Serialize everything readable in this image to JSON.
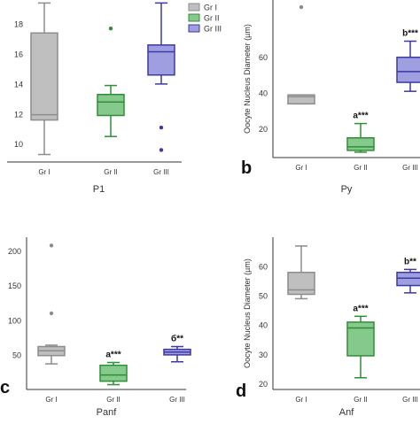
{
  "legend": {
    "items": [
      {
        "label": "Gr I",
        "color": "#bfbfbf",
        "stroke": "#8c8c8c"
      },
      {
        "label": "Gr II",
        "color": "#86c98c",
        "stroke": "#2f8f36"
      },
      {
        "label": "Gr III",
        "color": "#9e9ee0",
        "stroke": "#3a3aa0"
      }
    ]
  },
  "groups": [
    {
      "name": "Gr I",
      "fill": "#bfbfbf",
      "stroke": "#8c8c8c"
    },
    {
      "name": "Gr II",
      "fill": "#86c98c",
      "stroke": "#2f8f36"
    },
    {
      "name": "Gr III",
      "fill": "#9e9ee0",
      "stroke": "#3a3aa0"
    }
  ],
  "chart_data": [
    {
      "type": "box",
      "panel_letter": "",
      "xlabel": "P1",
      "ylabel": "",
      "ylim": [
        8.8,
        19.6
      ],
      "yticks": [
        10,
        12,
        14,
        16,
        18
      ],
      "categories": [
        "Gr I",
        "Gr II",
        "Gr III"
      ],
      "boxes": [
        {
          "whislo": 9.3,
          "q1": 11.6,
          "med": 11.95,
          "q3": 17.4,
          "whishi": 19.4,
          "outliers": [],
          "annotation": ""
        },
        {
          "whislo": 10.5,
          "q1": 11.9,
          "med": 12.8,
          "q3": 13.3,
          "whishi": 13.9,
          "outliers": [
            17.7
          ],
          "annotation": ""
        },
        {
          "whislo": 14.0,
          "q1": 14.6,
          "med": 16.15,
          "q3": 16.6,
          "whishi": 19.4,
          "outliers": [
            11.1,
            9.6
          ],
          "annotation": ""
        }
      ]
    },
    {
      "type": "box",
      "panel_letter": "b",
      "xlabel": "Py",
      "ylabel": "Oocyte Nucleus Diameter (µm)",
      "ylim": [
        4,
        92
      ],
      "yticks": [
        20,
        40,
        60
      ],
      "categories": [
        "Gr I",
        "Gr II",
        "Gr III"
      ],
      "boxes": [
        {
          "whislo": 34,
          "q1": 34,
          "med": 38,
          "q3": 39,
          "whishi": 39,
          "outliers": [
            88
          ],
          "annotation": ""
        },
        {
          "whislo": 7,
          "q1": 8,
          "med": 10,
          "q3": 15,
          "whishi": 23,
          "outliers": [],
          "annotation": "a***"
        },
        {
          "whislo": 41,
          "q1": 46,
          "med": 52,
          "q3": 60,
          "whishi": 69,
          "outliers": [],
          "annotation": "b***"
        }
      ]
    },
    {
      "type": "box",
      "panel_letter": "c",
      "xlabel": "Panf",
      "ylabel": "",
      "ylim": [
        0,
        220
      ],
      "yticks": [
        50,
        100,
        150,
        200
      ],
      "categories": [
        "Gr I",
        "Gr II",
        "Gr III"
      ],
      "boxes": [
        {
          "whislo": 37,
          "q1": 49,
          "med": 56,
          "q3": 62,
          "whishi": 64,
          "outliers": [
            208,
            110
          ],
          "annotation": ""
        },
        {
          "whislo": 7,
          "q1": 12,
          "med": 21,
          "q3": 35,
          "whishi": 39,
          "outliers": [],
          "annotation": "a***"
        },
        {
          "whislo": 40,
          "q1": 50,
          "med": 54,
          "q3": 58,
          "whishi": 62,
          "outliers": [],
          "annotation": "б**"
        }
      ]
    },
    {
      "type": "box",
      "panel_letter": "d",
      "xlabel": "Anf",
      "ylabel": "Oocyte Nucleus Diameter (µm)",
      "ylim": [
        18,
        70
      ],
      "yticks": [
        20,
        30,
        40,
        50,
        60
      ],
      "categories": [
        "Gr I",
        "Gr II",
        "Gr III"
      ],
      "boxes": [
        {
          "whislo": 49,
          "q1": 50.5,
          "med": 52,
          "q3": 58,
          "whishi": 67,
          "outliers": [],
          "annotation": ""
        },
        {
          "whislo": 22,
          "q1": 29.5,
          "med": 39,
          "q3": 41,
          "whishi": 43,
          "outliers": [],
          "annotation": "a***"
        },
        {
          "whislo": 51,
          "q1": 53.5,
          "med": 56,
          "q3": 58,
          "whishi": 59,
          "outliers": [],
          "annotation": "b**"
        }
      ]
    }
  ]
}
